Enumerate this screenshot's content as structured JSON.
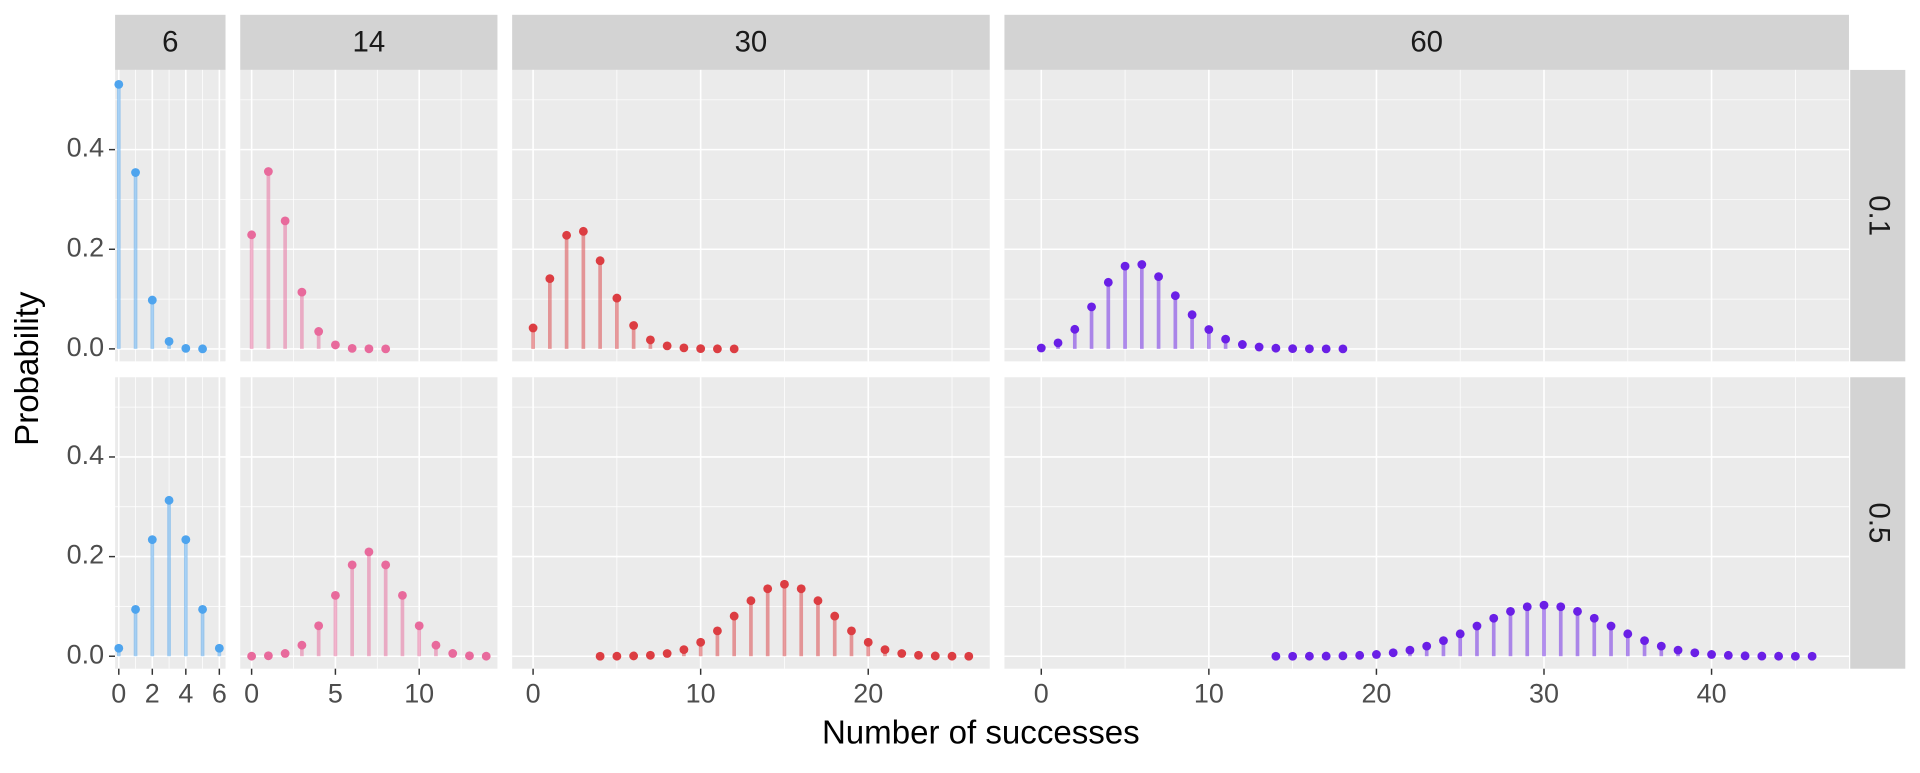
{
  "chart_data": {
    "type": "stem",
    "x_label": "Number of successes",
    "y_label": "Probability",
    "ylim": [
      -0.025,
      0.56
    ],
    "yticks": [
      {
        "value": 0,
        "label": "0.0"
      },
      0.2,
      0.4
    ],
    "grid": true,
    "columns": [
      {
        "label": "6",
        "color": "#4ea4ee",
        "xlim": [
          -0.22,
          6.37
        ],
        "xticks": [
          0,
          2,
          4,
          6
        ]
      },
      {
        "label": "14",
        "color": "#e86a9c",
        "xlim": [
          -0.68,
          14.67
        ],
        "xticks": [
          0,
          5,
          10
        ]
      },
      {
        "label": "30",
        "color": "#dc3d42",
        "xlim": [
          -1.25,
          27.25
        ],
        "xticks": [
          0,
          10,
          20
        ]
      },
      {
        "label": "60",
        "color": "#6a1fe6",
        "xlim": [
          -2.2,
          48.2
        ],
        "xticks": [
          0,
          10,
          20,
          30,
          40
        ]
      }
    ],
    "rows": [
      {
        "label": "0.1",
        "panels": [
          {
            "x": [
              0,
              1,
              2,
              3,
              4,
              5
            ],
            "values": [
              0.531,
              0.354,
              0.098,
              0.015,
              0.001,
              0.0001
            ]
          },
          {
            "x": [
              0,
              1,
              2,
              3,
              4,
              5,
              6,
              7,
              8
            ],
            "values": [
              0.229,
              0.356,
              0.257,
              0.114,
              0.035,
              0.008,
              0.001,
              0.0002,
              0.0
            ]
          },
          {
            "x": [
              0,
              1,
              2,
              3,
              4,
              5,
              6,
              7,
              8,
              9,
              10,
              11,
              12
            ],
            "values": [
              0.042,
              0.141,
              0.228,
              0.236,
              0.177,
              0.102,
              0.047,
              0.018,
              0.006,
              0.002,
              0.0005,
              0.0001,
              0.0
            ]
          },
          {
            "x": [
              0,
              1,
              2,
              3,
              4,
              5,
              6,
              7,
              8,
              9,
              10,
              11,
              12,
              13,
              14,
              15,
              16,
              17,
              18
            ],
            "values": [
              0.0018,
              0.012,
              0.0393,
              0.0844,
              0.1336,
              0.1662,
              0.1693,
              0.1451,
              0.1068,
              0.0686,
              0.0389,
              0.0196,
              0.0089,
              0.0037,
              0.0014,
              0.0005,
              0.0002,
              0.0,
              0.0
            ]
          }
        ]
      },
      {
        "label": "0.5",
        "panels": [
          {
            "x": [
              0,
              1,
              2,
              3,
              4,
              5,
              6
            ],
            "values": [
              0.016,
              0.094,
              0.234,
              0.313,
              0.234,
              0.094,
              0.016
            ]
          },
          {
            "x": [
              0,
              1,
              2,
              3,
              4,
              5,
              6,
              7,
              8,
              9,
              10,
              11,
              12,
              13,
              14
            ],
            "values": [
              0.0001,
              0.0009,
              0.0056,
              0.0222,
              0.0611,
              0.1222,
              0.1833,
              0.2095,
              0.1833,
              0.1222,
              0.0611,
              0.0222,
              0.0056,
              0.0009,
              0.0001
            ]
          },
          {
            "x": [
              4,
              5,
              6,
              7,
              8,
              9,
              10,
              11,
              12,
              13,
              14,
              15,
              16,
              17,
              18,
              19,
              20,
              21,
              22,
              23,
              24,
              25,
              26
            ],
            "values": [
              0.0,
              0.0001,
              0.0006,
              0.0019,
              0.0055,
              0.0133,
              0.028,
              0.0509,
              0.0806,
              0.1115,
              0.1354,
              0.1445,
              0.1354,
              0.1115,
              0.0806,
              0.0509,
              0.028,
              0.0133,
              0.0055,
              0.0019,
              0.0006,
              0.0001,
              0.0
            ]
          },
          {
            "x": [
              14,
              15,
              16,
              17,
              18,
              19,
              20,
              21,
              22,
              23,
              24,
              25,
              26,
              27,
              28,
              29,
              30,
              31,
              32,
              33,
              34,
              35,
              36,
              37,
              38,
              39,
              40,
              41,
              42,
              43,
              44,
              45,
              46
            ],
            "values": [
              0.0,
              0.0,
              0.0001,
              0.0003,
              0.0008,
              0.0018,
              0.0036,
              0.0069,
              0.0123,
              0.0203,
              0.0313,
              0.045,
              0.0606,
              0.0763,
              0.09,
              0.0993,
              0.1026,
              0.0993,
              0.09,
              0.0763,
              0.0606,
              0.045,
              0.0313,
              0.0203,
              0.0123,
              0.0069,
              0.0036,
              0.0018,
              0.0008,
              0.0003,
              0.0001,
              0.0,
              0.0
            ]
          }
        ]
      }
    ]
  }
}
